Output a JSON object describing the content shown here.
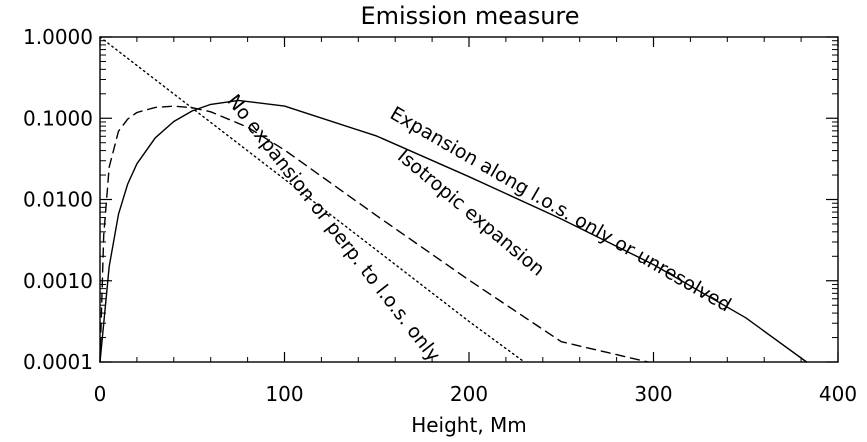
{
  "chart_data": {
    "type": "line",
    "title": "Emission measure",
    "xlabel": "Height, Mm",
    "ylabel": "",
    "xlim": [
      0,
      400
    ],
    "ylim": [
      0.0001,
      1.0
    ],
    "yscale": "log",
    "x_ticks": [
      0,
      100,
      200,
      300,
      400
    ],
    "x_tick_labels": [
      "0",
      "100",
      "200",
      "300",
      "400"
    ],
    "y_ticks": [
      1.0,
      0.1,
      0.01,
      0.001,
      0.0001
    ],
    "y_tick_labels": [
      "1.0000",
      "0.1000",
      "0.0100",
      "0.0010",
      "0.0001"
    ],
    "grid": false,
    "legend": "none",
    "series": [
      {
        "name": "No expansion or perp. to l.o.s. only",
        "line_style": "dotted",
        "x": [
          0,
          50,
          100,
          150,
          200,
          230
        ],
        "y": [
          1.0,
          0.133,
          0.0178,
          0.00237,
          0.000316,
          0.0001
        ]
      },
      {
        "name": "Isotropic expansion",
        "line_style": "dashed",
        "x": [
          0,
          2,
          5,
          10,
          15,
          20,
          30,
          40,
          50,
          60,
          80,
          100,
          150,
          200,
          250,
          297
        ],
        "y": [
          0.0001,
          0.0036,
          0.0251,
          0.0692,
          0.0976,
          0.1178,
          0.1359,
          0.1413,
          0.1349,
          0.1202,
          0.0776,
          0.0407,
          0.0063,
          0.00102,
          0.000178,
          0.0001
        ]
      },
      {
        "name": "Expansion along l.o.s. only or unresolved",
        "line_style": "solid",
        "x": [
          0,
          5,
          10,
          15,
          20,
          30,
          40,
          50,
          60,
          75,
          100,
          150,
          200,
          250,
          300,
          350,
          383
        ],
        "y": [
          0.0001,
          0.0015,
          0.0066,
          0.0155,
          0.0275,
          0.0575,
          0.0912,
          0.123,
          0.1479,
          0.166,
          0.1413,
          0.0603,
          0.0191,
          0.00575,
          0.00158,
          0.00035,
          0.0001
        ]
      }
    ],
    "annotations": [
      {
        "text": "Expansion along l.o.s. only or unresolved",
        "x": 248,
        "y": 0.0065,
        "rotation": 30
      },
      {
        "text": "Isotropic expansion",
        "x": 199,
        "y": 0.006,
        "rotation": 40
      },
      {
        "text": "No expansion or perp. to l.o.s. only",
        "x": 124,
        "y": 0.004,
        "rotation": 52
      }
    ]
  }
}
